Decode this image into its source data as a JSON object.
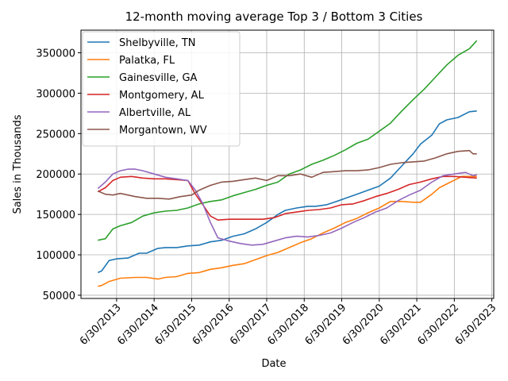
{
  "chart_data": {
    "type": "line",
    "title": "12-month moving average Top 3 / Bottom 3 Cities",
    "xlabel": "Date",
    "ylabel": "Sales in Thousands",
    "xlim": [
      2012.55,
      2023.55
    ],
    "ylim": [
      46000,
      378000
    ],
    "grid": true,
    "legend_position": "upper-left",
    "x_ticks": [
      {
        "value": 2013.5,
        "label": "6/30/2013"
      },
      {
        "value": 2014.5,
        "label": "6/30/2014"
      },
      {
        "value": 2015.5,
        "label": "6/30/2015"
      },
      {
        "value": 2016.5,
        "label": "6/30/2016"
      },
      {
        "value": 2017.5,
        "label": "6/30/2017"
      },
      {
        "value": 2018.5,
        "label": "6/30/2018"
      },
      {
        "value": 2019.5,
        "label": "6/30/2019"
      },
      {
        "value": 2020.5,
        "label": "6/30/2020"
      },
      {
        "value": 2021.5,
        "label": "6/30/2021"
      },
      {
        "value": 2022.5,
        "label": "6/30/2022"
      },
      {
        "value": 2023.5,
        "label": "6/30/2023"
      }
    ],
    "y_ticks": [
      {
        "value": 50000,
        "label": "50000"
      },
      {
        "value": 100000,
        "label": "100000"
      },
      {
        "value": 150000,
        "label": "150000"
      },
      {
        "value": 200000,
        "label": "200000"
      },
      {
        "value": 250000,
        "label": "250000"
      },
      {
        "value": 300000,
        "label": "300000"
      },
      {
        "value": 350000,
        "label": "350000"
      }
    ],
    "series": [
      {
        "name": "Shelbyville, TN",
        "color": "#1f77b4",
        "points": [
          [
            2013.0,
            78000
          ],
          [
            2013.1,
            80000
          ],
          [
            2013.3,
            93000
          ],
          [
            2013.5,
            95000
          ],
          [
            2013.8,
            96000
          ],
          [
            2014.1,
            102000
          ],
          [
            2014.3,
            102000
          ],
          [
            2014.6,
            108000
          ],
          [
            2014.8,
            109000
          ],
          [
            2015.1,
            109000
          ],
          [
            2015.4,
            111000
          ],
          [
            2015.7,
            112000
          ],
          [
            2016.0,
            116000
          ],
          [
            2016.3,
            118000
          ],
          [
            2016.6,
            123000
          ],
          [
            2016.9,
            126000
          ],
          [
            2017.2,
            132000
          ],
          [
            2017.5,
            140000
          ],
          [
            2017.8,
            150000
          ],
          [
            2018.0,
            155000
          ],
          [
            2018.3,
            158000
          ],
          [
            2018.6,
            160000
          ],
          [
            2018.8,
            160000
          ],
          [
            2019.1,
            162000
          ],
          [
            2019.3,
            165000
          ],
          [
            2019.6,
            170000
          ],
          [
            2019.9,
            175000
          ],
          [
            2020.2,
            180000
          ],
          [
            2020.5,
            185000
          ],
          [
            2020.8,
            195000
          ],
          [
            2021.1,
            210000
          ],
          [
            2021.4,
            225000
          ],
          [
            2021.6,
            237000
          ],
          [
            2021.9,
            248000
          ],
          [
            2022.1,
            262000
          ],
          [
            2022.3,
            267000
          ],
          [
            2022.6,
            270000
          ],
          [
            2022.9,
            277000
          ],
          [
            2023.1,
            278000
          ]
        ]
      },
      {
        "name": "Palatka, FL",
        "color": "#ff7f0e",
        "points": [
          [
            2013.0,
            61000
          ],
          [
            2013.1,
            62000
          ],
          [
            2013.3,
            67000
          ],
          [
            2013.6,
            71000
          ],
          [
            2014.0,
            72000
          ],
          [
            2014.3,
            72000
          ],
          [
            2014.6,
            70000
          ],
          [
            2014.8,
            72000
          ],
          [
            2015.1,
            73000
          ],
          [
            2015.4,
            77000
          ],
          [
            2015.7,
            78000
          ],
          [
            2016.0,
            82000
          ],
          [
            2016.3,
            84000
          ],
          [
            2016.6,
            87000
          ],
          [
            2016.9,
            89000
          ],
          [
            2017.2,
            94000
          ],
          [
            2017.5,
            99000
          ],
          [
            2017.8,
            103000
          ],
          [
            2018.1,
            109000
          ],
          [
            2018.4,
            115000
          ],
          [
            2018.7,
            120000
          ],
          [
            2019.0,
            127000
          ],
          [
            2019.3,
            133000
          ],
          [
            2019.6,
            140000
          ],
          [
            2019.9,
            145000
          ],
          [
            2020.2,
            152000
          ],
          [
            2020.5,
            158000
          ],
          [
            2020.8,
            166000
          ],
          [
            2021.1,
            166000
          ],
          [
            2021.4,
            165000
          ],
          [
            2021.6,
            165000
          ],
          [
            2021.9,
            175000
          ],
          [
            2022.1,
            183000
          ],
          [
            2022.4,
            190000
          ],
          [
            2022.7,
            197000
          ],
          [
            2023.0,
            197000
          ],
          [
            2023.1,
            197000
          ]
        ]
      },
      {
        "name": "Gainesville, GA",
        "color": "#2ca02c",
        "points": [
          [
            2013.0,
            118000
          ],
          [
            2013.2,
            120000
          ],
          [
            2013.4,
            132000
          ],
          [
            2013.6,
            136000
          ],
          [
            2013.9,
            140000
          ],
          [
            2014.2,
            148000
          ],
          [
            2014.5,
            152000
          ],
          [
            2014.8,
            154000
          ],
          [
            2015.1,
            155000
          ],
          [
            2015.4,
            158000
          ],
          [
            2015.7,
            163000
          ],
          [
            2016.0,
            166000
          ],
          [
            2016.3,
            168000
          ],
          [
            2016.6,
            173000
          ],
          [
            2016.9,
            177000
          ],
          [
            2017.2,
            181000
          ],
          [
            2017.5,
            186000
          ],
          [
            2017.8,
            190000
          ],
          [
            2018.1,
            200000
          ],
          [
            2018.4,
            205000
          ],
          [
            2018.7,
            212000
          ],
          [
            2019.0,
            217000
          ],
          [
            2019.3,
            223000
          ],
          [
            2019.6,
            230000
          ],
          [
            2019.9,
            238000
          ],
          [
            2020.2,
            243000
          ],
          [
            2020.5,
            253000
          ],
          [
            2020.8,
            263000
          ],
          [
            2021.1,
            278000
          ],
          [
            2021.4,
            292000
          ],
          [
            2021.7,
            305000
          ],
          [
            2022.0,
            320000
          ],
          [
            2022.3,
            335000
          ],
          [
            2022.6,
            347000
          ],
          [
            2022.9,
            355000
          ],
          [
            2023.1,
            365000
          ]
        ]
      },
      {
        "name": "Montgomery, AL",
        "color": "#d62728",
        "points": [
          [
            2013.0,
            178000
          ],
          [
            2013.2,
            183000
          ],
          [
            2013.4,
            192000
          ],
          [
            2013.6,
            196000
          ],
          [
            2013.9,
            197000
          ],
          [
            2014.2,
            195000
          ],
          [
            2014.5,
            194000
          ],
          [
            2014.8,
            194000
          ],
          [
            2015.1,
            193000
          ],
          [
            2015.4,
            192000
          ],
          [
            2015.6,
            175000
          ],
          [
            2015.8,
            162000
          ],
          [
            2016.0,
            148000
          ],
          [
            2016.2,
            143000
          ],
          [
            2016.5,
            144000
          ],
          [
            2016.8,
            144000
          ],
          [
            2017.1,
            144000
          ],
          [
            2017.4,
            144000
          ],
          [
            2017.7,
            146000
          ],
          [
            2018.0,
            151000
          ],
          [
            2018.3,
            153000
          ],
          [
            2018.6,
            155000
          ],
          [
            2018.9,
            156000
          ],
          [
            2019.2,
            158000
          ],
          [
            2019.5,
            162000
          ],
          [
            2019.8,
            163000
          ],
          [
            2020.1,
            167000
          ],
          [
            2020.4,
            172000
          ],
          [
            2020.7,
            176000
          ],
          [
            2021.0,
            181000
          ],
          [
            2021.3,
            187000
          ],
          [
            2021.6,
            190000
          ],
          [
            2021.9,
            194000
          ],
          [
            2022.2,
            197000
          ],
          [
            2022.5,
            197000
          ],
          [
            2022.8,
            196000
          ],
          [
            2023.1,
            195000
          ]
        ]
      },
      {
        "name": "Albertville, AL",
        "color": "#9467bd",
        "points": [
          [
            2013.0,
            182000
          ],
          [
            2013.2,
            190000
          ],
          [
            2013.4,
            200000
          ],
          [
            2013.6,
            204000
          ],
          [
            2013.8,
            206000
          ],
          [
            2014.0,
            206000
          ],
          [
            2014.2,
            204000
          ],
          [
            2014.5,
            200000
          ],
          [
            2014.8,
            196000
          ],
          [
            2015.1,
            194000
          ],
          [
            2015.4,
            192000
          ],
          [
            2015.6,
            180000
          ],
          [
            2015.8,
            163000
          ],
          [
            2016.0,
            140000
          ],
          [
            2016.2,
            121000
          ],
          [
            2016.5,
            117000
          ],
          [
            2016.8,
            114000
          ],
          [
            2017.1,
            112000
          ],
          [
            2017.4,
            113000
          ],
          [
            2017.7,
            117000
          ],
          [
            2018.0,
            121000
          ],
          [
            2018.3,
            123000
          ],
          [
            2018.6,
            122000
          ],
          [
            2018.9,
            124000
          ],
          [
            2019.2,
            127000
          ],
          [
            2019.5,
            133000
          ],
          [
            2019.8,
            140000
          ],
          [
            2020.1,
            146000
          ],
          [
            2020.4,
            153000
          ],
          [
            2020.7,
            158000
          ],
          [
            2021.0,
            167000
          ],
          [
            2021.3,
            174000
          ],
          [
            2021.6,
            180000
          ],
          [
            2021.9,
            190000
          ],
          [
            2022.2,
            198000
          ],
          [
            2022.5,
            200000
          ],
          [
            2022.8,
            202000
          ],
          [
            2023.0,
            198000
          ],
          [
            2023.1,
            199000
          ]
        ]
      },
      {
        "name": "Morgantown, WV",
        "color": "#8c564b",
        "points": [
          [
            2013.0,
            179000
          ],
          [
            2013.2,
            175000
          ],
          [
            2013.4,
            174000
          ],
          [
            2013.6,
            176000
          ],
          [
            2013.8,
            174000
          ],
          [
            2014.0,
            172000
          ],
          [
            2014.3,
            170000
          ],
          [
            2014.6,
            170000
          ],
          [
            2014.9,
            169000
          ],
          [
            2015.2,
            172000
          ],
          [
            2015.5,
            174000
          ],
          [
            2015.7,
            180000
          ],
          [
            2016.0,
            186000
          ],
          [
            2016.3,
            190000
          ],
          [
            2016.6,
            191000
          ],
          [
            2016.9,
            193000
          ],
          [
            2017.2,
            195000
          ],
          [
            2017.5,
            192000
          ],
          [
            2017.8,
            198000
          ],
          [
            2018.1,
            198000
          ],
          [
            2018.4,
            200000
          ],
          [
            2018.7,
            196000
          ],
          [
            2019.0,
            202000
          ],
          [
            2019.3,
            203000
          ],
          [
            2019.6,
            204000
          ],
          [
            2019.9,
            204000
          ],
          [
            2020.2,
            205000
          ],
          [
            2020.5,
            208000
          ],
          [
            2020.8,
            212000
          ],
          [
            2021.1,
            214000
          ],
          [
            2021.4,
            215000
          ],
          [
            2021.7,
            216000
          ],
          [
            2022.0,
            220000
          ],
          [
            2022.3,
            225000
          ],
          [
            2022.6,
            228000
          ],
          [
            2022.9,
            229000
          ],
          [
            2023.0,
            225000
          ],
          [
            2023.1,
            225000
          ]
        ]
      }
    ]
  }
}
